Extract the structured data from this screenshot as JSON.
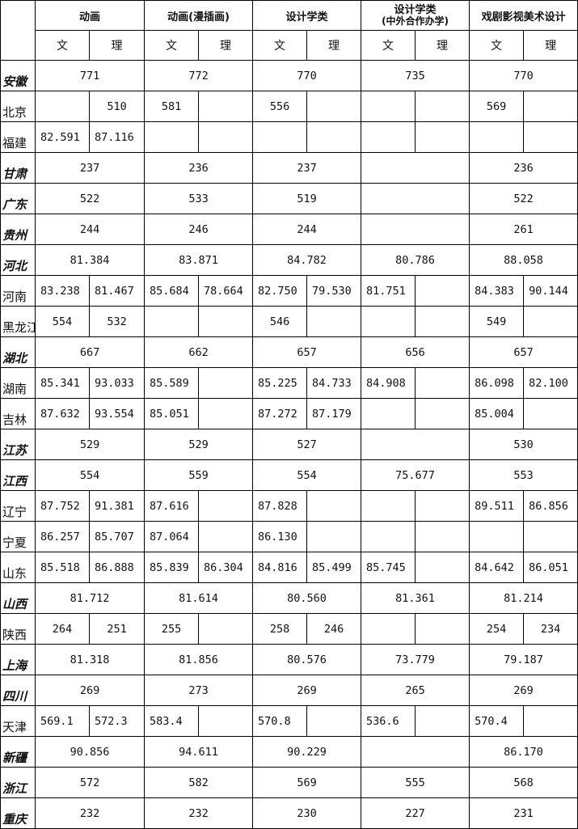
{
  "header": {
    "groups": [
      "动画",
      "动画(漫插画)",
      "设计学类",
      "设计学类",
      "戏剧影视美术设计"
    ],
    "group_sub": [
      "",
      "",
      "",
      "(中外合作办学)",
      ""
    ],
    "wen": "文",
    "li": "理"
  },
  "rows": [
    {
      "province": "安徽",
      "merged": true,
      "values": [
        "771",
        "772",
        "770",
        "735",
        "770"
      ]
    },
    {
      "province": "北京",
      "merged": false,
      "values": [
        "",
        "510",
        "581",
        "",
        "556",
        "",
        "",
        "",
        "569",
        ""
      ]
    },
    {
      "province": "福建",
      "merged": false,
      "values": [
        "82.591",
        "87.116",
        "",
        "",
        "",
        "",
        "",
        "",
        "",
        ""
      ]
    },
    {
      "province": "甘肃",
      "merged": true,
      "values": [
        "237",
        "236",
        "237",
        "",
        "236"
      ]
    },
    {
      "province": "广东",
      "merged": true,
      "values": [
        "522",
        "533",
        "519",
        "",
        "522"
      ]
    },
    {
      "province": "贵州",
      "merged": true,
      "values": [
        "244",
        "246",
        "244",
        "",
        "261"
      ]
    },
    {
      "province": "河北",
      "merged": true,
      "values": [
        "81.384",
        "83.871",
        "84.782",
        "80.786",
        "88.058"
      ]
    },
    {
      "province": "河南",
      "merged": false,
      "values": [
        "83.238",
        "81.467",
        "85.684",
        "78.664",
        "82.750",
        "79.530",
        "81.751",
        "",
        "84.383",
        "90.144"
      ]
    },
    {
      "province": "黑龙江",
      "merged": false,
      "values": [
        "554",
        "532",
        "",
        "",
        "546",
        "",
        "",
        "",
        "549",
        ""
      ]
    },
    {
      "province": "湖北",
      "merged": true,
      "values": [
        "667",
        "662",
        "657",
        "656",
        "657"
      ]
    },
    {
      "province": "湖南",
      "merged": false,
      "values": [
        "85.341",
        "93.033",
        "85.589",
        "",
        "85.225",
        "84.733",
        "84.908",
        "",
        "86.098",
        "82.100"
      ]
    },
    {
      "province": "吉林",
      "merged": false,
      "values": [
        "87.632",
        "93.554",
        "85.051",
        "",
        "87.272",
        "87.179",
        "",
        "",
        "85.004",
        ""
      ]
    },
    {
      "province": "江苏",
      "merged": true,
      "values": [
        "529",
        "529",
        "527",
        "",
        "530"
      ]
    },
    {
      "province": "江西",
      "merged": true,
      "values": [
        "554",
        "559",
        "554",
        "75.677",
        "553"
      ]
    },
    {
      "province": "辽宁",
      "merged": false,
      "values": [
        "87.752",
        "91.381",
        "87.616",
        "",
        "87.828",
        "",
        "",
        "",
        "89.511",
        "86.856"
      ]
    },
    {
      "province": "宁夏",
      "merged": false,
      "values": [
        "86.257",
        "85.707",
        "87.064",
        "",
        "86.130",
        "",
        "",
        "",
        "",
        ""
      ]
    },
    {
      "province": "山东",
      "merged": false,
      "values": [
        "85.518",
        "86.888",
        "85.839",
        "86.304",
        "84.816",
        "85.499",
        "85.745",
        "",
        "84.642",
        "86.051"
      ]
    },
    {
      "province": "山西",
      "merged": true,
      "values": [
        "81.712",
        "81.614",
        "80.560",
        "81.361",
        "81.214"
      ]
    },
    {
      "province": "陕西",
      "merged": false,
      "values": [
        "264",
        "251",
        "255",
        "",
        "258",
        "246",
        "",
        "",
        "254",
        "234"
      ]
    },
    {
      "province": "上海",
      "merged": true,
      "values": [
        "81.318",
        "81.856",
        "80.576",
        "73.779",
        "79.187"
      ]
    },
    {
      "province": "四川",
      "merged": true,
      "values": [
        "269",
        "273",
        "269",
        "265",
        "269"
      ]
    },
    {
      "province": "天津",
      "merged": false,
      "values": [
        "569.1",
        "572.3",
        "583.4",
        "",
        "570.8",
        "",
        "536.6",
        "",
        "570.4",
        ""
      ]
    },
    {
      "province": "新疆",
      "merged": true,
      "values": [
        "90.856",
        "94.611",
        "90.229",
        "",
        "86.170"
      ]
    },
    {
      "province": "浙江",
      "merged": true,
      "values": [
        "572",
        "582",
        "569",
        "555",
        "568"
      ]
    },
    {
      "province": "重庆",
      "merged": true,
      "values": [
        "232",
        "232",
        "230",
        "227",
        "231"
      ]
    }
  ]
}
